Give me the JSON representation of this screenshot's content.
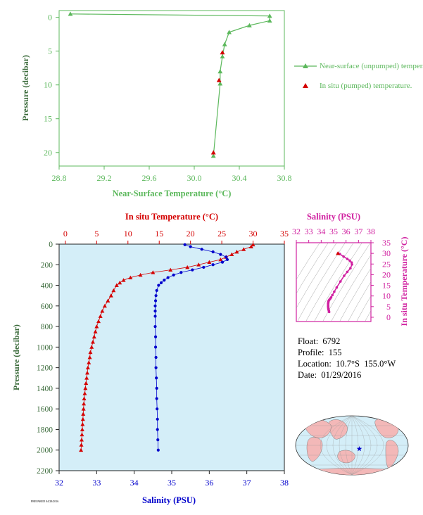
{
  "colors": {
    "green": "#5cb85c",
    "red": "#d40000",
    "blue": "#0000cc",
    "magenta": "#d020a0",
    "panel_bg": "#d4eef8",
    "axis": "#222222"
  },
  "chart_data": [
    {
      "type": "line",
      "xlabel": "Near-Surface Temperature (°C)",
      "ylabel": "Pressure (decibar)",
      "xlim": [
        28.8,
        30.8
      ],
      "ylim": [
        22,
        -1
      ],
      "xticks": [
        "28.8",
        "29.2",
        "29.6",
        "30.0",
        "30.4",
        "30.8"
      ],
      "yticks": [
        "0",
        "5",
        "10",
        "15",
        "20"
      ],
      "series": [
        {
          "name": "Near-surface (unpumped) temperature.",
          "color": "#5cb85c",
          "x": [
            28.9,
            30.67,
            30.67,
            30.49,
            30.31,
            30.27,
            30.25,
            30.23,
            30.23,
            30.17
          ],
          "y": [
            -0.5,
            -0.2,
            0.5,
            1.2,
            2.2,
            4.0,
            5.8,
            8.0,
            9.8,
            20.5
          ]
        },
        {
          "name": "In situ (pumped) temperature.",
          "color": "#d40000",
          "x": [
            30.25,
            30.22,
            30.17
          ],
          "y": [
            5.2,
            9.3,
            20.0
          ]
        }
      ]
    },
    {
      "type": "line",
      "xlabel_top": "In situ Temperature (°C)",
      "xlabel_bottom": "Salinity (PSU)",
      "ylabel": "Pressure (decibar)",
      "temp_lim": [
        -1,
        35
      ],
      "sal_lim": [
        32,
        38
      ],
      "ylim": [
        2200,
        0
      ],
      "temp_ticks": [
        "0",
        "5",
        "10",
        "15",
        "20",
        "25",
        "30",
        "35"
      ],
      "sal_ticks": [
        "32",
        "33",
        "34",
        "35",
        "36",
        "37",
        "38"
      ],
      "yticks": [
        "0",
        "200",
        "400",
        "600",
        "800",
        "1000",
        "1200",
        "1400",
        "1600",
        "1800",
        "2000",
        "2200"
      ],
      "temperature": {
        "p": [
          5,
          25,
          50,
          75,
          100,
          125,
          150,
          175,
          200,
          225,
          250,
          275,
          300,
          325,
          350,
          375,
          400,
          450,
          500,
          550,
          600,
          650,
          700,
          750,
          800,
          850,
          900,
          950,
          1000,
          1050,
          1100,
          1150,
          1200,
          1250,
          1300,
          1350,
          1400,
          1450,
          1500,
          1550,
          1600,
          1650,
          1700,
          1750,
          1800,
          1850,
          1900,
          1950,
          2000
        ],
        "t": [
          30.0,
          29.7,
          28.5,
          27.4,
          26.6,
          25.7,
          24.8,
          23.0,
          21.3,
          19.5,
          16.8,
          14.0,
          12.0,
          10.4,
          9.3,
          8.7,
          8.2,
          7.7,
          7.3,
          6.8,
          6.3,
          5.9,
          5.6,
          5.3,
          5.0,
          4.8,
          4.6,
          4.4,
          4.2,
          4.0,
          3.9,
          3.75,
          3.6,
          3.5,
          3.4,
          3.3,
          3.2,
          3.1,
          3.0,
          2.95,
          2.9,
          2.85,
          2.8,
          2.75,
          2.7,
          2.65,
          2.6,
          2.55,
          2.5
        ]
      },
      "salinity": {
        "p": [
          5,
          25,
          50,
          75,
          100,
          125,
          150,
          175,
          200,
          225,
          250,
          275,
          300,
          325,
          350,
          375,
          400,
          450,
          500,
          550,
          600,
          650,
          700,
          800,
          900,
          1000,
          1100,
          1200,
          1300,
          1400,
          1500,
          1600,
          1700,
          1800,
          1900,
          2000
        ],
        "s": [
          35.35,
          35.5,
          35.8,
          36.1,
          36.3,
          36.45,
          36.48,
          36.35,
          36.1,
          35.85,
          35.55,
          35.25,
          35.05,
          34.9,
          34.8,
          34.72,
          34.65,
          34.6,
          34.58,
          34.57,
          34.56,
          34.56,
          34.56,
          34.56,
          34.57,
          34.57,
          34.58,
          34.58,
          34.59,
          34.6,
          34.6,
          34.61,
          34.62,
          34.62,
          34.63,
          34.64
        ]
      }
    },
    {
      "type": "scatter",
      "title": "Salinity (PSU)",
      "ylabel": "In situ Temperature (°C)",
      "xlim": [
        32,
        38
      ],
      "ylim": [
        -2,
        35
      ],
      "xticks": [
        "32",
        "33",
        "34",
        "35",
        "36",
        "37",
        "38"
      ],
      "yticks": [
        "0",
        "5",
        "10",
        "15",
        "20",
        "25",
        "30",
        "35"
      ],
      "s": [
        35.35,
        35.5,
        35.8,
        36.1,
        36.3,
        36.45,
        36.48,
        36.35,
        36.1,
        35.85,
        35.55,
        35.25,
        35.05,
        34.9,
        34.8,
        34.72,
        34.65,
        34.6,
        34.58,
        34.57,
        34.56,
        34.56,
        34.56,
        34.57,
        34.58,
        34.6,
        34.62,
        34.64
      ],
      "t": [
        30.0,
        29.7,
        28.5,
        27.4,
        26.6,
        25.7,
        24.8,
        23.0,
        21.3,
        19.5,
        16.8,
        14.0,
        12.0,
        10.4,
        9.3,
        8.7,
        8.2,
        7.7,
        7.3,
        6.8,
        6.3,
        5.6,
        5.0,
        4.4,
        3.9,
        3.4,
        3.0,
        2.5
      ]
    }
  ],
  "info": {
    "float": "Float:  6792",
    "profile": "Profile:  155",
    "location": "Location:  10.7°S  155.0°W",
    "date": "Date:  01/29/2016"
  },
  "footer_text": "PREPARED 04/28/2016",
  "map": {
    "icon": "world-map",
    "marker_icon": "star-icon",
    "marker_lat": -10.7,
    "marker_lon": -155.0
  }
}
